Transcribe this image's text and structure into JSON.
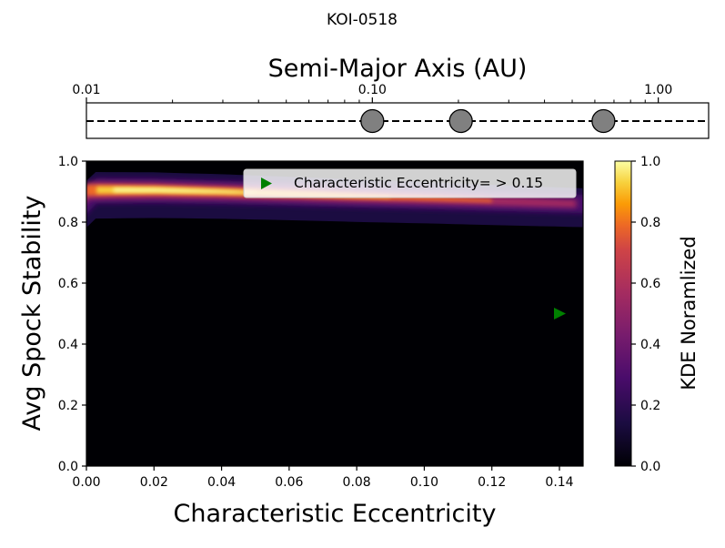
{
  "figure": {
    "title": "KOI-0518"
  },
  "chart_data": [
    {
      "type": "scatter",
      "name": "orbit-panel",
      "title": "Semi-Major Axis (AU)",
      "xscale": "log",
      "xlim": [
        0.01,
        1.5
      ],
      "xticks": [
        0.01,
        0.1,
        1.0
      ],
      "xtick_labels": [
        "0.01",
        "0.10",
        "1.00"
      ],
      "axis_position": "top",
      "reference_line": "dashed",
      "planets": [
        {
          "a": 0.1
        },
        {
          "a": 0.204
        },
        {
          "a": 0.643
        }
      ],
      "marker_color": "#808080"
    },
    {
      "type": "heatmap",
      "name": "kde-panel",
      "xlabel": "Characteristic Eccentricity",
      "ylabel": "Avg Spock Stability",
      "xlim": [
        0.0,
        0.147
      ],
      "ylim": [
        0.0,
        1.0
      ],
      "xticks": [
        "0.00",
        "0.02",
        "0.04",
        "0.06",
        "0.08",
        "0.10",
        "0.12",
        "0.14"
      ],
      "yticks": [
        "0.0",
        "0.2",
        "0.4",
        "0.6",
        "0.8",
        "1.0"
      ],
      "colormap": "inferno",
      "density_ridge": [
        {
          "x": 0.0,
          "y": 0.905
        },
        {
          "x": 0.02,
          "y": 0.905
        },
        {
          "x": 0.04,
          "y": 0.9
        },
        {
          "x": 0.06,
          "y": 0.893
        },
        {
          "x": 0.08,
          "y": 0.885
        },
        {
          "x": 0.1,
          "y": 0.878
        },
        {
          "x": 0.12,
          "y": 0.87
        },
        {
          "x": 0.147,
          "y": 0.86
        }
      ],
      "marker": {
        "x": 0.14,
        "y": 0.5,
        "color": "#008000",
        "shape": "triangle-right"
      },
      "legend": {
        "label": "Characteristic Eccentricity= > 0.15",
        "placement": "upper-right"
      },
      "colorbar": {
        "label": "KDE Noramlized",
        "range": [
          0.0,
          1.0
        ],
        "ticks": [
          "0.0",
          "0.2",
          "0.4",
          "0.6",
          "0.8",
          "1.0"
        ]
      }
    }
  ]
}
